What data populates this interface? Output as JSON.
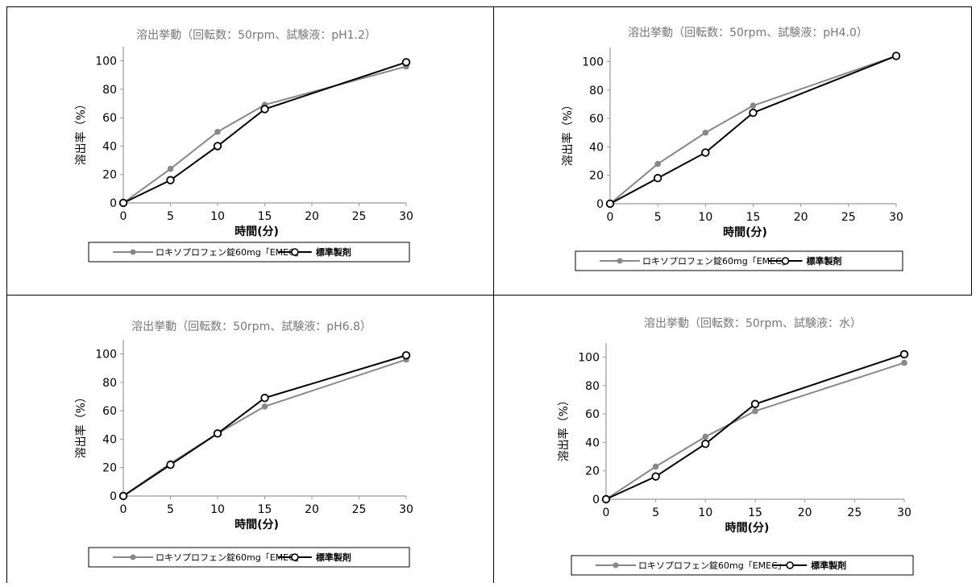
{
  "chart_data": [
    {
      "type": "line",
      "title": "溶出挙動（回転数：50rpm、試験液：pH1.2）",
      "xlabel": "時間(分)",
      "ylabel": "溶出率（%）",
      "x": [
        0,
        5,
        10,
        15,
        30
      ],
      "xticks": [
        0,
        5,
        10,
        15,
        20,
        25,
        30
      ],
      "yticks": [
        0,
        20,
        40,
        60,
        80,
        100
      ],
      "xlim": [
        0,
        30
      ],
      "ylim": [
        0,
        110
      ],
      "series": [
        {
          "name": "ロキソプロフェン錠60mg「EMEC」",
          "values": [
            0,
            24,
            50,
            69,
            96
          ],
          "color": "#888888",
          "marker": "filled"
        },
        {
          "name": "標準製剤",
          "values": [
            0,
            16,
            40,
            66,
            99
          ],
          "color": "#000000",
          "marker": "open"
        }
      ]
    },
    {
      "type": "line",
      "title": "溶出挙動（回転数：50rpm、試験液：pH4.0）",
      "xlabel": "時間(分)",
      "ylabel": "溶出率（%）",
      "x": [
        0,
        5,
        10,
        15,
        30
      ],
      "xticks": [
        0,
        5,
        10,
        15,
        20,
        25,
        30
      ],
      "yticks": [
        0,
        20,
        40,
        60,
        80,
        100
      ],
      "xlim": [
        0,
        30
      ],
      "ylim": [
        0,
        110
      ],
      "series": [
        {
          "name": "ロキソプロフェン錠60mg「EMEC」",
          "values": [
            0,
            28,
            50,
            69,
            104
          ],
          "color": "#888888",
          "marker": "filled"
        },
        {
          "name": "標準製剤",
          "values": [
            0,
            18,
            36,
            64,
            104
          ],
          "color": "#000000",
          "marker": "open"
        }
      ]
    },
    {
      "type": "line",
      "title": "溶出挙動（回転数：50rpm、試験液：pH6.8）",
      "xlabel": "時間(分)",
      "ylabel": "溶出率（%）",
      "x": [
        0,
        5,
        10,
        15,
        30
      ],
      "xticks": [
        0,
        5,
        10,
        15,
        20,
        25,
        30
      ],
      "yticks": [
        0,
        20,
        40,
        60,
        80,
        100
      ],
      "xlim": [
        0,
        30
      ],
      "ylim": [
        0,
        110
      ],
      "series": [
        {
          "name": "ロキソプロフェン錠60mg「EMEC」",
          "values": [
            0,
            23,
            44,
            63,
            96
          ],
          "color": "#888888",
          "marker": "filled"
        },
        {
          "name": "標準製剤",
          "values": [
            0,
            22,
            44,
            69,
            99
          ],
          "color": "#000000",
          "marker": "open"
        }
      ]
    },
    {
      "type": "line",
      "title": "溶出挙動（回転数：50rpm、試験液：水）",
      "xlabel": "時間(分)",
      "ylabel": "溶出率（%）",
      "x": [
        0,
        5,
        10,
        15,
        30
      ],
      "xticks": [
        0,
        5,
        10,
        15,
        20,
        25,
        30
      ],
      "yticks": [
        0,
        20,
        40,
        60,
        80,
        100
      ],
      "xlim": [
        0,
        30
      ],
      "ylim": [
        0,
        110
      ],
      "series": [
        {
          "name": "ロキソプロフェン錠60mg「EMEC」",
          "values": [
            0,
            23,
            44,
            62,
            96
          ],
          "color": "#888888",
          "marker": "filled"
        },
        {
          "name": "標準製剤",
          "values": [
            0,
            16,
            39,
            67,
            102
          ],
          "color": "#000000",
          "marker": "open"
        }
      ]
    }
  ]
}
